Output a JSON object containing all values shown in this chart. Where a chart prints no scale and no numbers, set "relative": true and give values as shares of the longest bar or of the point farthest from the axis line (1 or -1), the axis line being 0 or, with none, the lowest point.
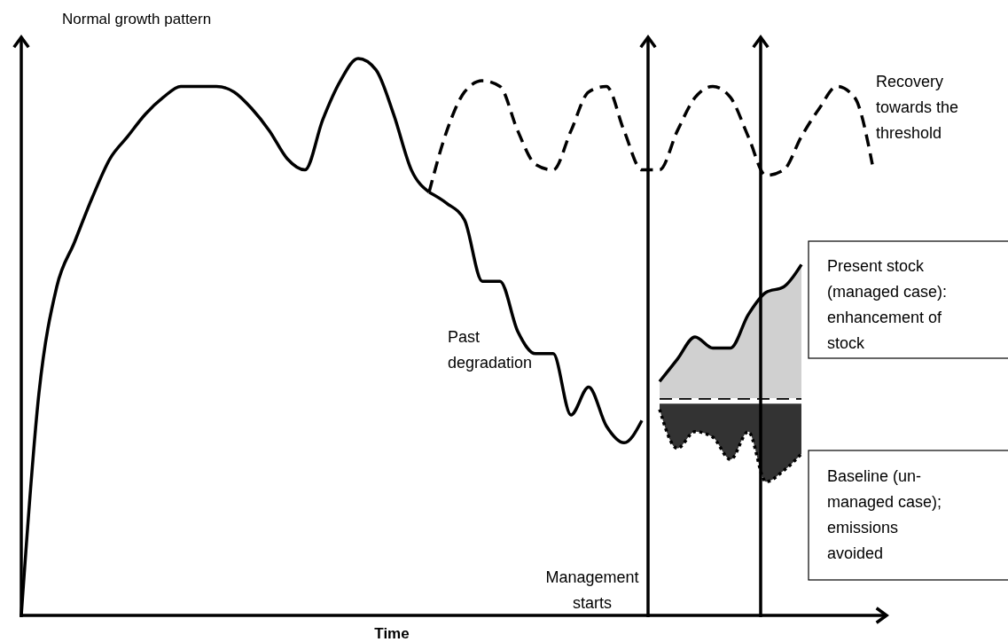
{
  "chart_data": {
    "type": "line",
    "relative": true,
    "ylabel": "Normal growth pattern",
    "xlabel": "Time",
    "legend": false,
    "grid": false,
    "categories": [
      null,
      null,
      null,
      null,
      null,
      null,
      null,
      null,
      null,
      null,
      null,
      null,
      null,
      null,
      null,
      null,
      null,
      null,
      null,
      null,
      null,
      null,
      null,
      null,
      null,
      null,
      null,
      null,
      null,
      null,
      null,
      null,
      null,
      null,
      null,
      null,
      null,
      null,
      null,
      null,
      null,
      null,
      null,
      null,
      null,
      null,
      null,
      null,
      null,
      null
    ],
    "series": [
      {
        "type": "line",
        "color": "#000000",
        "line_style": "solid",
        "values": [
          0,
          0.4,
          0.59,
          0.67,
          0.75,
          0.82,
          0.86,
          0.9,
          0.93,
          0.95,
          0.95,
          0.95,
          0.94,
          0.91,
          0.87,
          0.82,
          0.8,
          0.89,
          0.96,
          1.0,
          0.98,
          0.9,
          0.8,
          0.76,
          null,
          null,
          null,
          null,
          null,
          null,
          null,
          null,
          null,
          null,
          null,
          null,
          null,
          null,
          null,
          null,
          null,
          null,
          null,
          null,
          null,
          null,
          null,
          null,
          null,
          null
        ]
      },
      {
        "type": "line",
        "color": "#000000",
        "line_style": "dashed",
        "values": [
          null,
          null,
          null,
          null,
          null,
          null,
          null,
          null,
          null,
          null,
          null,
          null,
          null,
          null,
          null,
          null,
          null,
          null,
          null,
          null,
          null,
          null,
          null,
          0.76,
          0.87,
          0.94,
          0.96,
          0.95,
          0.87,
          0.81,
          0.8,
          0.87,
          0.94,
          0.95,
          0.87,
          0.8,
          0.8,
          0.87,
          0.93,
          0.95,
          0.93,
          0.86,
          0.79,
          0.8,
          0.86,
          0.91,
          0.95,
          0.93,
          0.81,
          null
        ]
      },
      {
        "type": "line",
        "color": "#000000",
        "line_style": "solid",
        "values": [
          null,
          null,
          null,
          null,
          null,
          null,
          null,
          null,
          null,
          null,
          null,
          null,
          null,
          null,
          null,
          null,
          null,
          null,
          null,
          null,
          null,
          null,
          null,
          0.76,
          0.74,
          0.71,
          0.6,
          0.6,
          0.51,
          0.47,
          0.47,
          0.36,
          0.41,
          0.34,
          0.31,
          0.35,
          null,
          null,
          null,
          null,
          null,
          null,
          null,
          null,
          null,
          null,
          null,
          null,
          null,
          null
        ]
      },
      {
        "type": "line",
        "color": "#000000",
        "line_style": "dashed",
        "values": [
          null,
          null,
          null,
          null,
          null,
          null,
          null,
          null,
          null,
          null,
          null,
          null,
          null,
          null,
          null,
          null,
          null,
          null,
          null,
          null,
          null,
          null,
          null,
          null,
          null,
          null,
          null,
          null,
          null,
          null,
          null,
          null,
          null,
          null,
          null,
          null,
          0.39,
          0.39,
          0.39,
          0.39,
          0.39,
          0.39,
          0.39,
          0.39,
          0.39,
          null,
          null,
          null,
          null,
          null
        ]
      },
      {
        "type": "area",
        "color": "#d0d0d0",
        "line_style": "solid",
        "values": [
          null,
          null,
          null,
          null,
          null,
          null,
          null,
          null,
          null,
          null,
          null,
          null,
          null,
          null,
          null,
          null,
          null,
          null,
          null,
          null,
          null,
          null,
          null,
          null,
          null,
          null,
          null,
          null,
          null,
          null,
          null,
          null,
          null,
          null,
          null,
          null,
          0.42,
          0.46,
          0.5,
          0.48,
          0.48,
          0.54,
          0.58,
          0.59,
          0.63,
          null,
          null,
          null,
          null,
          null
        ]
      },
      {
        "type": "line",
        "color": "#000000",
        "line_style": "dotted",
        "values": [
          null,
          null,
          null,
          null,
          null,
          null,
          null,
          null,
          null,
          null,
          null,
          null,
          null,
          null,
          null,
          null,
          null,
          null,
          null,
          null,
          null,
          null,
          null,
          null,
          null,
          null,
          null,
          null,
          null,
          null,
          null,
          null,
          null,
          null,
          null,
          null,
          0.37,
          0.3,
          0.33,
          0.32,
          0.28,
          0.33,
          0.24,
          0.26,
          0.29,
          null,
          null,
          null,
          null,
          null
        ],
        "lower": [
          null,
          null,
          null,
          null,
          null,
          null,
          null,
          null,
          null,
          null,
          null,
          null,
          null,
          null,
          null,
          null,
          null,
          null,
          null,
          null,
          null,
          null,
          null,
          null,
          null,
          null,
          null,
          null,
          null,
          null,
          null,
          null,
          null,
          null,
          null,
          null,
          0.37,
          0.3,
          0.33,
          0.32,
          0.28,
          0.33,
          0.24,
          0.26,
          0.29,
          null,
          null,
          null,
          null,
          null
        ],
        "upper": [
          null,
          null,
          null,
          null,
          null,
          null,
          null,
          null,
          null,
          null,
          null,
          null,
          null,
          null,
          null,
          null,
          null,
          null,
          null,
          null,
          null,
          null,
          null,
          null,
          null,
          null,
          null,
          null,
          null,
          null,
          null,
          null,
          null,
          null,
          null,
          null,
          0.38,
          0.38,
          0.38,
          0.38,
          0.38,
          0.38,
          0.38,
          0.38,
          0.38,
          null,
          null,
          null,
          null,
          null
        ]
      }
    ],
    "annotations": [
      "Past degradation",
      "Management starts",
      "Recovery towards the threshold",
      "Present stock (managed case): enhancement of stock",
      "Baseline (un-managed case); emissions avoided"
    ]
  }
}
